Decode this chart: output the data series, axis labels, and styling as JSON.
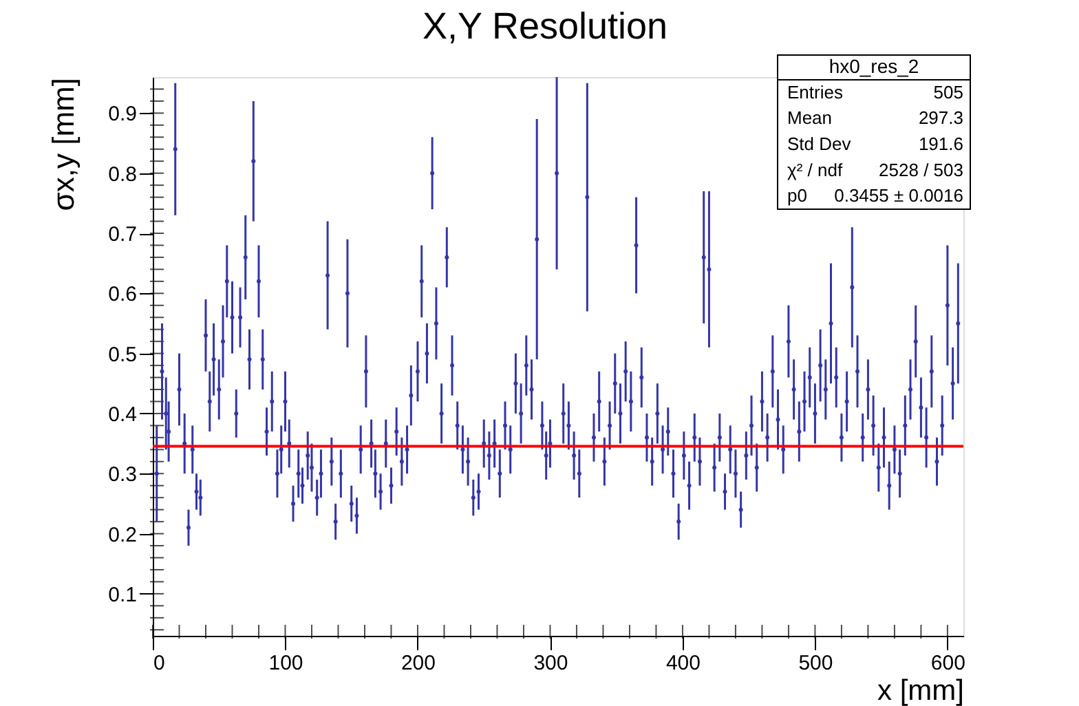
{
  "chart_data": {
    "type": "scatter",
    "title": "X,Y Resolution",
    "xlabel": "x [mm]",
    "ylabel": "σx,y [mm]",
    "xlim": [
      0,
      612
    ],
    "ylim": [
      0.03,
      0.96
    ],
    "xticks": [
      0,
      100,
      200,
      300,
      400,
      500,
      600
    ],
    "yticks": [
      0.1,
      0.2,
      0.3,
      0.4,
      0.5,
      0.6,
      0.7,
      0.8,
      0.9
    ],
    "grid": false,
    "marker": "circle",
    "ref_lines": [
      {
        "axis": "y",
        "value": 0.3455,
        "color": "#ff0000"
      }
    ],
    "annotations": [
      "hx0_res_2",
      "Entries",
      "505",
      "Mean",
      "297.3",
      "Std Dev",
      "191.6",
      "χ² / ndf",
      "2528 / 503",
      "p0",
      "0.3455 ± 0.0016"
    ],
    "series": [
      {
        "color": "#3535a8",
        "x": [
          3,
          7,
          10,
          12,
          17,
          20,
          24,
          27,
          30,
          33,
          36,
          40,
          43,
          46,
          50,
          53,
          56,
          60,
          63,
          66,
          70,
          73,
          76,
          80,
          83,
          86,
          90,
          94,
          97,
          100,
          103,
          106,
          110,
          113,
          117,
          120,
          124,
          127,
          132,
          135,
          138,
          142,
          147,
          150,
          154,
          157,
          161,
          165,
          168,
          172,
          176,
          180,
          184,
          188,
          192,
          195,
          200,
          203,
          207,
          211,
          214,
          218,
          222,
          226,
          230,
          234,
          238,
          242,
          246,
          250,
          254,
          258,
          262,
          266,
          270,
          274,
          278,
          282,
          286,
          290,
          294,
          297,
          300,
          305,
          310,
          314,
          318,
          322,
          328,
          333,
          337,
          341,
          345,
          349,
          353,
          357,
          361,
          365,
          369,
          373,
          377,
          381,
          385,
          389,
          393,
          397,
          401,
          405,
          409,
          413,
          416,
          420,
          424,
          428,
          432,
          436,
          440,
          444,
          448,
          452,
          456,
          460,
          464,
          468,
          472,
          476,
          480,
          484,
          488,
          492,
          496,
          500,
          504,
          508,
          512,
          516,
          520,
          524,
          528,
          532,
          536,
          540,
          544,
          548,
          552,
          556,
          560,
          564,
          568,
          572,
          576,
          580,
          584,
          588,
          592,
          596,
          600,
          604,
          608
        ],
        "values": [
          0.3,
          0.47,
          0.4,
          0.37,
          0.84,
          0.44,
          0.35,
          0.21,
          0.34,
          0.27,
          0.26,
          0.53,
          0.42,
          0.49,
          0.44,
          0.52,
          0.62,
          0.56,
          0.4,
          0.56,
          0.66,
          0.49,
          0.82,
          0.62,
          0.49,
          0.37,
          0.42,
          0.3,
          0.34,
          0.42,
          0.35,
          0.25,
          0.3,
          0.28,
          0.33,
          0.31,
          0.26,
          0.3,
          0.63,
          0.32,
          0.22,
          0.3,
          0.6,
          0.25,
          0.23,
          0.34,
          0.47,
          0.35,
          0.3,
          0.27,
          0.35,
          0.28,
          0.37,
          0.32,
          0.34,
          0.43,
          0.47,
          0.62,
          0.5,
          0.8,
          0.55,
          0.4,
          0.66,
          0.48,
          0.38,
          0.34,
          0.32,
          0.26,
          0.27,
          0.35,
          0.33,
          0.35,
          0.3,
          0.38,
          0.34,
          0.45,
          0.4,
          0.48,
          0.44,
          0.69,
          0.38,
          0.33,
          0.35,
          0.8,
          0.4,
          0.38,
          0.33,
          0.3,
          0.76,
          0.36,
          0.42,
          0.32,
          0.38,
          0.45,
          0.4,
          0.47,
          0.42,
          0.68,
          0.46,
          0.36,
          0.32,
          0.4,
          0.34,
          0.37,
          0.3,
          0.22,
          0.33,
          0.28,
          0.36,
          0.32,
          0.66,
          0.64,
          0.31,
          0.36,
          0.27,
          0.34,
          0.3,
          0.24,
          0.33,
          0.38,
          0.31,
          0.42,
          0.36,
          0.47,
          0.39,
          0.34,
          0.52,
          0.44,
          0.37,
          0.42,
          0.46,
          0.4,
          0.48,
          0.44,
          0.55,
          0.46,
          0.36,
          0.42,
          0.61,
          0.47,
          0.36,
          0.44,
          0.38,
          0.31,
          0.36,
          0.28,
          0.34,
          0.3,
          0.38,
          0.44,
          0.52,
          0.41,
          0.36,
          0.47,
          0.32,
          0.38,
          0.58,
          0.45,
          0.55
        ],
        "errors": [
          0.08,
          0.08,
          0.06,
          0.05,
          0.11,
          0.06,
          0.05,
          0.03,
          0.04,
          0.03,
          0.03,
          0.06,
          0.05,
          0.06,
          0.05,
          0.06,
          0.06,
          0.06,
          0.04,
          0.05,
          0.07,
          0.05,
          0.1,
          0.06,
          0.05,
          0.04,
          0.05,
          0.04,
          0.04,
          0.05,
          0.04,
          0.03,
          0.04,
          0.03,
          0.04,
          0.04,
          0.03,
          0.04,
          0.09,
          0.04,
          0.03,
          0.04,
          0.09,
          0.03,
          0.03,
          0.04,
          0.06,
          0.04,
          0.04,
          0.03,
          0.04,
          0.03,
          0.04,
          0.04,
          0.04,
          0.05,
          0.05,
          0.06,
          0.05,
          0.06,
          0.06,
          0.05,
          0.05,
          0.05,
          0.04,
          0.04,
          0.04,
          0.03,
          0.03,
          0.04,
          0.04,
          0.04,
          0.04,
          0.04,
          0.04,
          0.05,
          0.05,
          0.05,
          0.05,
          0.2,
          0.04,
          0.04,
          0.04,
          0.16,
          0.05,
          0.04,
          0.04,
          0.04,
          0.19,
          0.04,
          0.05,
          0.04,
          0.04,
          0.05,
          0.05,
          0.05,
          0.05,
          0.08,
          0.05,
          0.04,
          0.04,
          0.05,
          0.04,
          0.04,
          0.04,
          0.03,
          0.04,
          0.04,
          0.04,
          0.04,
          0.11,
          0.13,
          0.04,
          0.04,
          0.03,
          0.04,
          0.04,
          0.03,
          0.04,
          0.05,
          0.04,
          0.05,
          0.04,
          0.06,
          0.05,
          0.04,
          0.06,
          0.05,
          0.05,
          0.05,
          0.05,
          0.05,
          0.06,
          0.05,
          0.1,
          0.05,
          0.04,
          0.05,
          0.1,
          0.06,
          0.04,
          0.05,
          0.05,
          0.04,
          0.05,
          0.04,
          0.04,
          0.04,
          0.05,
          0.05,
          0.06,
          0.05,
          0.05,
          0.06,
          0.04,
          0.05,
          0.1,
          0.06,
          0.1
        ]
      }
    ]
  }
}
